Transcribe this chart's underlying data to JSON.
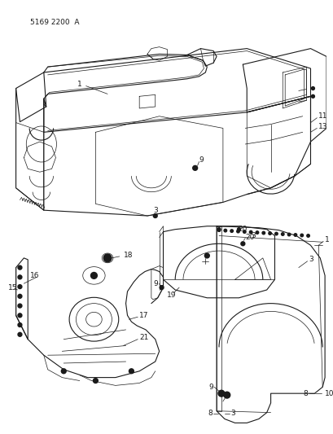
{
  "bg_color": "#ffffff",
  "line_color": "#1a1a1a",
  "fig_width": 4.1,
  "fig_height": 5.33,
  "dpi": 100,
  "header_text": "5169 2200  A",
  "header_fontsize": 6.5
}
